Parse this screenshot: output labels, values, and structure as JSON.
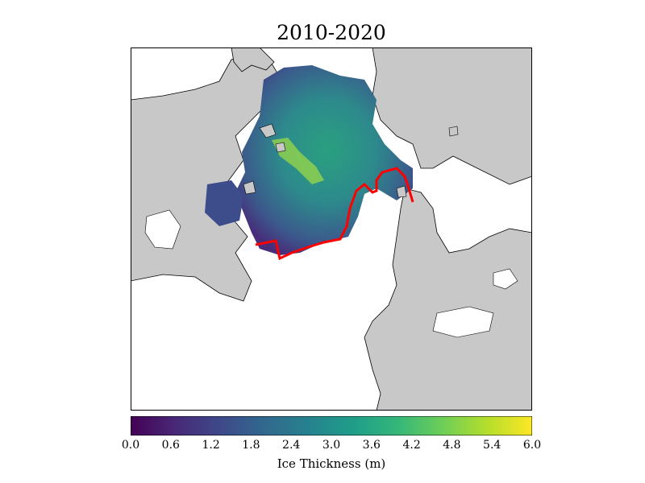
{
  "title": "2010-2020",
  "colorbar": {
    "label": "Ice Thickness (m)",
    "ticks": [
      "0.0",
      "0.6",
      "1.2",
      "1.8",
      "2.4",
      "3.0",
      "3.6",
      "4.2",
      "4.8",
      "5.4",
      "6.0"
    ],
    "range": [
      0,
      6
    ],
    "colormap": "viridis",
    "colors": [
      "#440154",
      "#482878",
      "#3e4989",
      "#31688e",
      "#26828e",
      "#1f9e89",
      "#35b779",
      "#6ece58",
      "#b5de2b",
      "#fde725"
    ]
  },
  "map": {
    "land_color": "#c8c8c8",
    "ocean_color": "#ffffff",
    "ice_edge_color": "#ff0000"
  }
}
